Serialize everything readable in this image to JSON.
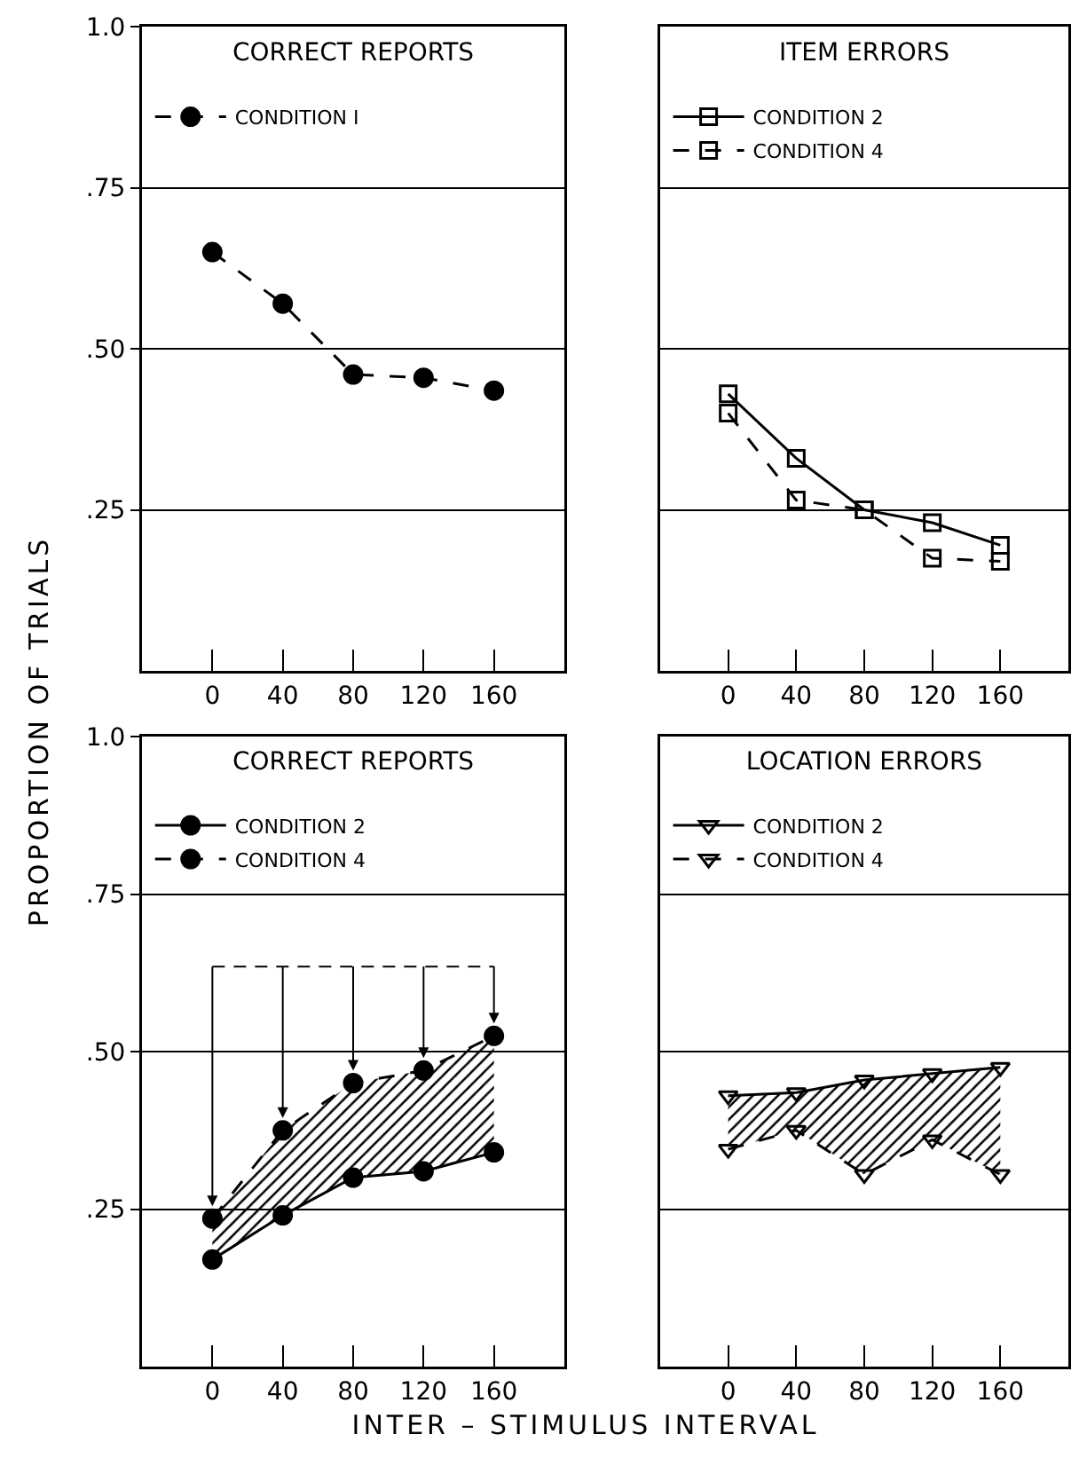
{
  "chart_data": [
    {
      "type": "line",
      "title": "CORRECT REPORTS",
      "ylabel": "PROPORTION OF TRIALS",
      "x": [
        0,
        40,
        80,
        120,
        160
      ],
      "xlim": [
        -40,
        200
      ],
      "xticks": [
        0,
        40,
        80,
        120,
        160
      ],
      "ylim": [
        0,
        1
      ],
      "yticks": [
        {
          "value": 0.25,
          "label": ".25"
        },
        {
          "value": 0.5,
          "label": ".50"
        },
        {
          "value": 0.75,
          "label": ".75"
        },
        {
          "value": 1,
          "label": "1.0"
        }
      ],
      "grid": "y",
      "legend": "top left",
      "marker": "circle",
      "series": [
        {
          "name": "CONDITION I",
          "color": "#000000",
          "line_style": "dashed",
          "values": [
            0.65,
            0.57,
            0.46,
            0.455,
            0.435
          ]
        }
      ]
    },
    {
      "type": "line",
      "title": "ITEM ERRORS",
      "x": [
        0,
        40,
        80,
        120,
        160
      ],
      "xlim": [
        -40,
        200
      ],
      "xticks": [
        0,
        40,
        80,
        120,
        160
      ],
      "ylim": [
        0,
        1
      ],
      "yticks": [
        {
          "value": 0.25,
          "label": null
        },
        {
          "value": 0.5,
          "label": null
        },
        {
          "value": 0.75,
          "label": null
        },
        {
          "value": 1,
          "label": null
        }
      ],
      "tick_labels": "x",
      "grid": "y",
      "legend": "top left",
      "marker": "square",
      "series": [
        {
          "name": "CONDITION 2",
          "color": "#000000",
          "line_style": "solid",
          "values": [
            0.43,
            0.33,
            0.25,
            0.23,
            0.195
          ]
        },
        {
          "name": "CONDITION 4",
          "color": "#000000",
          "line_style": "dashed",
          "values": [
            0.4,
            0.265,
            0.25,
            0.175,
            0.17
          ]
        }
      ]
    },
    {
      "type": "line",
      "title": "CORRECT REPORTS",
      "xlabel": "INTER – STIMULUS INTERVAL",
      "x": [
        0,
        40,
        80,
        120,
        160
      ],
      "xlim": [
        -40,
        200
      ],
      "xticks": [
        0,
        40,
        80,
        120,
        160
      ],
      "ylim": [
        0,
        1
      ],
      "yticks": [
        {
          "value": 0.25,
          "label": ".25"
        },
        {
          "value": 0.5,
          "label": ".50"
        },
        {
          "value": 0.75,
          "label": ".75"
        },
        {
          "value": 1,
          "label": "1.0"
        }
      ],
      "grid": "y",
      "legend": "top left",
      "marker": "circle",
      "series": [
        {
          "name": "CONDITION 2",
          "color": "#000000",
          "line_style": "solid",
          "values": [
            0.17,
            0.24,
            0.3,
            0.31,
            0.34
          ]
        },
        {
          "name": "CONDITION 4",
          "color": "#000000",
          "line_style": "dashed",
          "values": [
            0.235,
            0.375,
            0.45,
            0.47,
            0.525
          ],
          "lower": [
            0.17,
            0.24,
            0.3,
            0.31,
            0.34
          ],
          "upper": [
            0.235,
            0.375,
            0.45,
            0.47,
            0.525
          ]
        }
      ]
    },
    {
      "type": "line",
      "title": "LOCATION ERRORS",
      "x": [
        0,
        40,
        80,
        120,
        160
      ],
      "xlim": [
        -40,
        200
      ],
      "xticks": [
        0,
        40,
        80,
        120,
        160
      ],
      "ylim": [
        0,
        1
      ],
      "yticks": [
        {
          "value": 0.25,
          "label": null
        },
        {
          "value": 0.5,
          "label": null
        },
        {
          "value": 0.75,
          "label": null
        },
        {
          "value": 1,
          "label": null
        }
      ],
      "tick_labels": "x",
      "grid": "y",
      "legend": "top left",
      "marker": "triangle",
      "series": [
        {
          "name": "CONDITION 2",
          "color": "#000000",
          "line_style": "solid",
          "values": [
            0.43,
            0.435,
            0.455,
            0.465,
            0.475
          ]
        },
        {
          "name": "CONDITION 4",
          "color": "#000000",
          "line_style": "dashed",
          "values": [
            0.345,
            0.375,
            0.305,
            0.36,
            0.305
          ],
          "lower": [
            0.345,
            0.375,
            0.305,
            0.36,
            0.305
          ],
          "upper": [
            0.43,
            0.435,
            0.455,
            0.465,
            0.475
          ]
        }
      ]
    }
  ]
}
